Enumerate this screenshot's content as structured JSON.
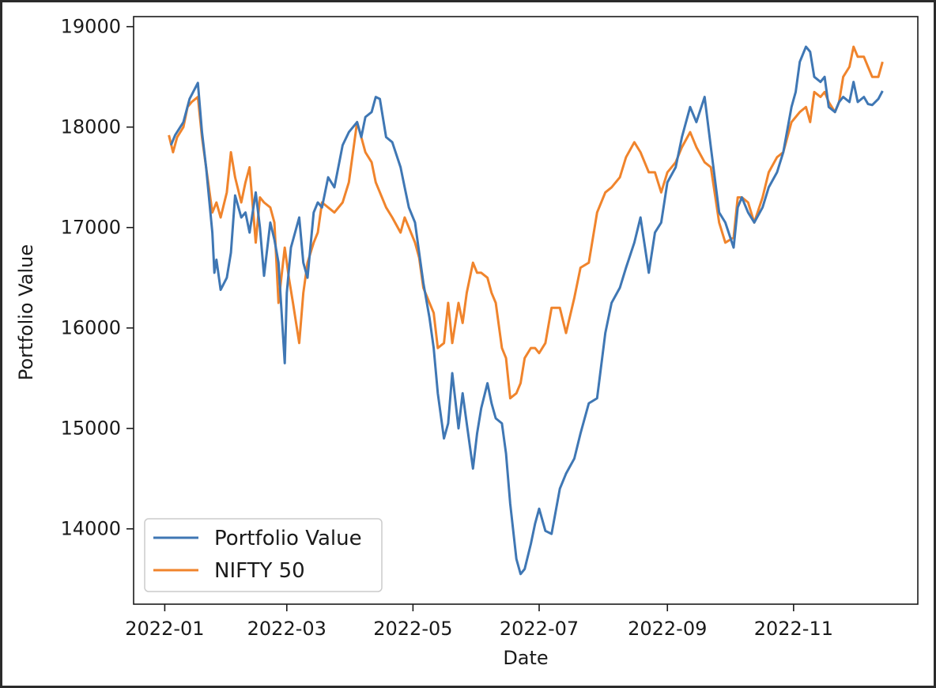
{
  "chart_data": {
    "type": "line",
    "title": "",
    "xlabel": "Date",
    "ylabel": "Portfolio Value",
    "x_range": [
      "2022-01-03",
      "2022-12-14"
    ],
    "ylim": [
      13250,
      19100
    ],
    "x_ticks": [
      "2022-01",
      "2022-03",
      "2022-05",
      "2022-07",
      "2022-09",
      "2022-11"
    ],
    "x_tick_dates": [
      "2022-01-01",
      "2022-03-01",
      "2022-05-01",
      "2022-07-01",
      "2022-09-01",
      "2022-11-01"
    ],
    "y_ticks": [
      14000,
      15000,
      16000,
      17000,
      18000,
      19000
    ],
    "grid": false,
    "legend": "lower-left",
    "series": [
      {
        "name": "Portfolio Value",
        "color": "#3f77b4",
        "points": [
          [
            "2022-01-04",
            17820
          ],
          [
            "2022-01-06",
            17920
          ],
          [
            "2022-01-10",
            18050
          ],
          [
            "2022-01-13",
            18280
          ],
          [
            "2022-01-17",
            18440
          ],
          [
            "2022-01-19",
            17950
          ],
          [
            "2022-01-21",
            17600
          ],
          [
            "2022-01-24",
            16950
          ],
          [
            "2022-01-25",
            16550
          ],
          [
            "2022-01-26",
            16680
          ],
          [
            "2022-01-28",
            16380
          ],
          [
            "2022-01-31",
            16500
          ],
          [
            "2022-02-02",
            16750
          ],
          [
            "2022-02-04",
            17320
          ],
          [
            "2022-02-07",
            17100
          ],
          [
            "2022-02-09",
            17150
          ],
          [
            "2022-02-11",
            16950
          ],
          [
            "2022-02-14",
            17350
          ],
          [
            "2022-02-16",
            17000
          ],
          [
            "2022-02-18",
            16520
          ],
          [
            "2022-02-21",
            17050
          ],
          [
            "2022-02-23",
            16880
          ],
          [
            "2022-02-25",
            16650
          ],
          [
            "2022-02-28",
            15650
          ],
          [
            "2022-03-01",
            16350
          ],
          [
            "2022-03-03",
            16800
          ],
          [
            "2022-03-07",
            17100
          ],
          [
            "2022-03-09",
            16650
          ],
          [
            "2022-03-11",
            16500
          ],
          [
            "2022-03-14",
            17150
          ],
          [
            "2022-03-16",
            17250
          ],
          [
            "2022-03-18",
            17200
          ],
          [
            "2022-03-21",
            17500
          ],
          [
            "2022-03-24",
            17400
          ],
          [
            "2022-03-28",
            17820
          ],
          [
            "2022-03-31",
            17950
          ],
          [
            "2022-04-04",
            18050
          ],
          [
            "2022-04-06",
            17900
          ],
          [
            "2022-04-08",
            18100
          ],
          [
            "2022-04-11",
            18150
          ],
          [
            "2022-04-13",
            18300
          ],
          [
            "2022-04-15",
            18280
          ],
          [
            "2022-04-18",
            17900
          ],
          [
            "2022-04-21",
            17850
          ],
          [
            "2022-04-25",
            17600
          ],
          [
            "2022-04-27",
            17400
          ],
          [
            "2022-04-29",
            17200
          ],
          [
            "2022-05-02",
            17050
          ],
          [
            "2022-05-04",
            16750
          ],
          [
            "2022-05-06",
            16450
          ],
          [
            "2022-05-09",
            16100
          ],
          [
            "2022-05-11",
            15800
          ],
          [
            "2022-05-13",
            15350
          ],
          [
            "2022-05-16",
            14900
          ],
          [
            "2022-05-18",
            15050
          ],
          [
            "2022-05-20",
            15550
          ],
          [
            "2022-05-23",
            15000
          ],
          [
            "2022-05-25",
            15350
          ],
          [
            "2022-05-27",
            15050
          ],
          [
            "2022-05-30",
            14600
          ],
          [
            "2022-06-01",
            14950
          ],
          [
            "2022-06-03",
            15200
          ],
          [
            "2022-06-06",
            15450
          ],
          [
            "2022-06-08",
            15250
          ],
          [
            "2022-06-10",
            15100
          ],
          [
            "2022-06-13",
            15050
          ],
          [
            "2022-06-15",
            14750
          ],
          [
            "2022-06-17",
            14250
          ],
          [
            "2022-06-20",
            13700
          ],
          [
            "2022-06-22",
            13550
          ],
          [
            "2022-06-24",
            13600
          ],
          [
            "2022-06-27",
            13850
          ],
          [
            "2022-06-29",
            14050
          ],
          [
            "2022-07-01",
            14200
          ],
          [
            "2022-07-04",
            13980
          ],
          [
            "2022-07-07",
            13950
          ],
          [
            "2022-07-11",
            14400
          ],
          [
            "2022-07-14",
            14550
          ],
          [
            "2022-07-18",
            14700
          ],
          [
            "2022-07-21",
            14950
          ],
          [
            "2022-07-25",
            15250
          ],
          [
            "2022-07-29",
            15300
          ],
          [
            "2022-08-02",
            15950
          ],
          [
            "2022-08-05",
            16250
          ],
          [
            "2022-08-09",
            16400
          ],
          [
            "2022-08-12",
            16600
          ],
          [
            "2022-08-16",
            16850
          ],
          [
            "2022-08-19",
            17100
          ],
          [
            "2022-08-23",
            16550
          ],
          [
            "2022-08-26",
            16950
          ],
          [
            "2022-08-29",
            17050
          ],
          [
            "2022-09-01",
            17450
          ],
          [
            "2022-09-05",
            17600
          ],
          [
            "2022-09-08",
            17900
          ],
          [
            "2022-09-12",
            18200
          ],
          [
            "2022-09-15",
            18050
          ],
          [
            "2022-09-19",
            18300
          ],
          [
            "2022-09-22",
            17800
          ],
          [
            "2022-09-26",
            17150
          ],
          [
            "2022-09-29",
            17050
          ],
          [
            "2022-10-03",
            16800
          ],
          [
            "2022-10-05",
            17200
          ],
          [
            "2022-10-07",
            17300
          ],
          [
            "2022-10-10",
            17150
          ],
          [
            "2022-10-13",
            17050
          ],
          [
            "2022-10-17",
            17200
          ],
          [
            "2022-10-20",
            17400
          ],
          [
            "2022-10-24",
            17550
          ],
          [
            "2022-10-27",
            17750
          ],
          [
            "2022-10-31",
            18200
          ],
          [
            "2022-11-02",
            18350
          ],
          [
            "2022-11-04",
            18650
          ],
          [
            "2022-11-07",
            18800
          ],
          [
            "2022-11-09",
            18750
          ],
          [
            "2022-11-11",
            18500
          ],
          [
            "2022-11-14",
            18450
          ],
          [
            "2022-11-16",
            18500
          ],
          [
            "2022-11-18",
            18200
          ],
          [
            "2022-11-21",
            18150
          ],
          [
            "2022-11-23",
            18250
          ],
          [
            "2022-11-25",
            18300
          ],
          [
            "2022-11-28",
            18250
          ],
          [
            "2022-11-30",
            18450
          ],
          [
            "2022-12-02",
            18250
          ],
          [
            "2022-12-05",
            18300
          ],
          [
            "2022-12-07",
            18230
          ],
          [
            "2022-12-09",
            18220
          ],
          [
            "2022-12-12",
            18280
          ],
          [
            "2022-12-14",
            18360
          ]
        ]
      },
      {
        "name": "NIFTY 50",
        "color": "#f0842c",
        "points": [
          [
            "2022-01-03",
            17920
          ],
          [
            "2022-01-05",
            17750
          ],
          [
            "2022-01-07",
            17900
          ],
          [
            "2022-01-10",
            18000
          ],
          [
            "2022-01-12",
            18200
          ],
          [
            "2022-01-14",
            18250
          ],
          [
            "2022-01-17",
            18300
          ],
          [
            "2022-01-19",
            17900
          ],
          [
            "2022-01-21",
            17600
          ],
          [
            "2022-01-24",
            17150
          ],
          [
            "2022-01-26",
            17250
          ],
          [
            "2022-01-28",
            17100
          ],
          [
            "2022-01-31",
            17350
          ],
          [
            "2022-02-02",
            17750
          ],
          [
            "2022-02-04",
            17500
          ],
          [
            "2022-02-07",
            17250
          ],
          [
            "2022-02-09",
            17450
          ],
          [
            "2022-02-11",
            17600
          ],
          [
            "2022-02-14",
            16850
          ],
          [
            "2022-02-16",
            17300
          ],
          [
            "2022-02-18",
            17250
          ],
          [
            "2022-02-21",
            17200
          ],
          [
            "2022-02-23",
            17050
          ],
          [
            "2022-02-25",
            16250
          ],
          [
            "2022-02-28",
            16800
          ],
          [
            "2022-03-02",
            16500
          ],
          [
            "2022-03-04",
            16250
          ],
          [
            "2022-03-07",
            15850
          ],
          [
            "2022-03-09",
            16350
          ],
          [
            "2022-03-11",
            16650
          ],
          [
            "2022-03-14",
            16850
          ],
          [
            "2022-03-16",
            16950
          ],
          [
            "2022-03-18",
            17250
          ],
          [
            "2022-03-21",
            17200
          ],
          [
            "2022-03-24",
            17150
          ],
          [
            "2022-03-28",
            17250
          ],
          [
            "2022-03-31",
            17450
          ],
          [
            "2022-04-04",
            18050
          ],
          [
            "2022-04-06",
            17900
          ],
          [
            "2022-04-08",
            17750
          ],
          [
            "2022-04-11",
            17650
          ],
          [
            "2022-04-13",
            17450
          ],
          [
            "2022-04-18",
            17200
          ],
          [
            "2022-04-21",
            17100
          ],
          [
            "2022-04-25",
            16950
          ],
          [
            "2022-04-27",
            17100
          ],
          [
            "2022-04-29",
            17000
          ],
          [
            "2022-05-02",
            16850
          ],
          [
            "2022-05-04",
            16700
          ],
          [
            "2022-05-06",
            16400
          ],
          [
            "2022-05-09",
            16250
          ],
          [
            "2022-05-11",
            16150
          ],
          [
            "2022-05-13",
            15800
          ],
          [
            "2022-05-16",
            15850
          ],
          [
            "2022-05-18",
            16250
          ],
          [
            "2022-05-20",
            15850
          ],
          [
            "2022-05-23",
            16250
          ],
          [
            "2022-05-25",
            16050
          ],
          [
            "2022-05-27",
            16350
          ],
          [
            "2022-05-30",
            16650
          ],
          [
            "2022-06-01",
            16550
          ],
          [
            "2022-06-03",
            16550
          ],
          [
            "2022-06-06",
            16500
          ],
          [
            "2022-06-08",
            16350
          ],
          [
            "2022-06-10",
            16250
          ],
          [
            "2022-06-13",
            15800
          ],
          [
            "2022-06-15",
            15700
          ],
          [
            "2022-06-17",
            15300
          ],
          [
            "2022-06-20",
            15350
          ],
          [
            "2022-06-22",
            15450
          ],
          [
            "2022-06-24",
            15700
          ],
          [
            "2022-06-27",
            15800
          ],
          [
            "2022-06-29",
            15800
          ],
          [
            "2022-07-01",
            15750
          ],
          [
            "2022-07-04",
            15850
          ],
          [
            "2022-07-07",
            16200
          ],
          [
            "2022-07-11",
            16200
          ],
          [
            "2022-07-14",
            15950
          ],
          [
            "2022-07-18",
            16300
          ],
          [
            "2022-07-21",
            16600
          ],
          [
            "2022-07-25",
            16650
          ],
          [
            "2022-07-29",
            17150
          ],
          [
            "2022-08-02",
            17350
          ],
          [
            "2022-08-05",
            17400
          ],
          [
            "2022-08-09",
            17500
          ],
          [
            "2022-08-12",
            17700
          ],
          [
            "2022-08-16",
            17850
          ],
          [
            "2022-08-19",
            17750
          ],
          [
            "2022-08-23",
            17550
          ],
          [
            "2022-08-26",
            17550
          ],
          [
            "2022-08-29",
            17350
          ],
          [
            "2022-09-01",
            17550
          ],
          [
            "2022-09-05",
            17650
          ],
          [
            "2022-09-08",
            17800
          ],
          [
            "2022-09-12",
            17950
          ],
          [
            "2022-09-15",
            17800
          ],
          [
            "2022-09-19",
            17650
          ],
          [
            "2022-09-22",
            17600
          ],
          [
            "2022-09-26",
            17050
          ],
          [
            "2022-09-29",
            16850
          ],
          [
            "2022-10-03",
            16900
          ],
          [
            "2022-10-05",
            17300
          ],
          [
            "2022-10-07",
            17300
          ],
          [
            "2022-10-10",
            17250
          ],
          [
            "2022-10-13",
            17050
          ],
          [
            "2022-10-17",
            17300
          ],
          [
            "2022-10-20",
            17550
          ],
          [
            "2022-10-24",
            17700
          ],
          [
            "2022-10-27",
            17750
          ],
          [
            "2022-10-31",
            18050
          ],
          [
            "2022-11-02",
            18100
          ],
          [
            "2022-11-04",
            18150
          ],
          [
            "2022-11-07",
            18200
          ],
          [
            "2022-11-09",
            18050
          ],
          [
            "2022-11-11",
            18350
          ],
          [
            "2022-11-14",
            18300
          ],
          [
            "2022-11-16",
            18350
          ],
          [
            "2022-11-18",
            18250
          ],
          [
            "2022-11-21",
            18150
          ],
          [
            "2022-11-23",
            18250
          ],
          [
            "2022-11-25",
            18500
          ],
          [
            "2022-11-28",
            18600
          ],
          [
            "2022-11-30",
            18800
          ],
          [
            "2022-12-02",
            18700
          ],
          [
            "2022-12-05",
            18700
          ],
          [
            "2022-12-07",
            18600
          ],
          [
            "2022-12-09",
            18500
          ],
          [
            "2022-12-12",
            18500
          ],
          [
            "2022-12-14",
            18650
          ]
        ]
      }
    ]
  }
}
